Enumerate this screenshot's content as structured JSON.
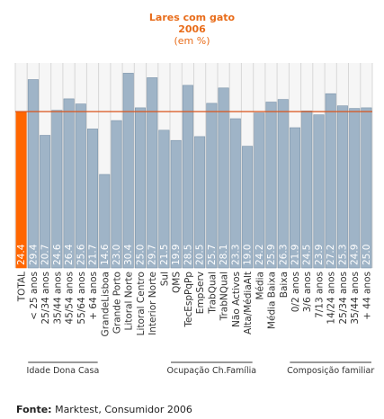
{
  "chart_data": {
    "type": "bar",
    "title": "Lares com gato",
    "subtitle_year": "2006",
    "unit": "(em %)",
    "categories": [
      "TOTAL",
      "< 25 anos",
      "25/34 anos",
      "35/44 anos",
      "45/54 anos",
      "55/64 anos",
      "+ 64 anos",
      "GrandeLisboa",
      "Grande Porto",
      "Litoral Norte",
      "Litoral Centro",
      "Interior Norte",
      "Sul",
      "QMS",
      "TecEspPqPp",
      "EmpServ",
      "TrabQual",
      "TrabNQual",
      "Não Activos",
      "Alta/MédiaAlt",
      "Média",
      "Média Baixa",
      "Baixa",
      "0/2 anos",
      "3/6 anos",
      "7/13 anos",
      "14/24 anos",
      "25/34 anos",
      "35/44 anos",
      "+ 44 anos"
    ],
    "values": [
      24.4,
      29.4,
      20.7,
      24.6,
      26.4,
      25.6,
      21.7,
      14.6,
      23.0,
      30.4,
      25.0,
      29.7,
      21.5,
      19.9,
      28.5,
      20.5,
      25.7,
      28.1,
      23.3,
      19.0,
      24.2,
      25.9,
      26.3,
      21.9,
      24.5,
      23.9,
      27.2,
      25.3,
      24.9,
      25.0
    ],
    "value_labels": [
      "24.4",
      "29.4",
      "20.7",
      "24.6",
      "26.4",
      "25.6",
      "21.7",
      "14.6",
      "23.0",
      "30.4",
      "25.0",
      "29.7",
      "21.5",
      "19.9",
      "28.5",
      "20.5",
      "25.7",
      "28.1",
      "23.3",
      "19.0",
      "24.2",
      "25.9",
      "26.3",
      "21.9",
      "24.5",
      "23.9",
      "27.2",
      "25.3",
      "24.9",
      "25.0"
    ],
    "ylim": [
      0,
      32
    ],
    "reference_line": 24.4,
    "highlight_index": 0,
    "groups": [
      {
        "label": "Idade Dona Casa",
        "start": 1,
        "end": 6
      },
      {
        "label": "Ocupação Ch.Família",
        "start": 13,
        "end": 19
      },
      {
        "label": "Composição familiar",
        "start": 23,
        "end": 29
      }
    ],
    "colors": {
      "highlight": "#ff6600",
      "bar": "#9fb4c7",
      "bar_stroke": "#7d95ab",
      "reference": "#d9541b",
      "plot_bg": "#f6f6f6",
      "grid": "#d8d8d8",
      "title": "#e86c1a"
    },
    "grid": true
  },
  "footer": {
    "source_label": "Fonte:",
    "source_text": " Marktest, Consumidor 2006"
  }
}
